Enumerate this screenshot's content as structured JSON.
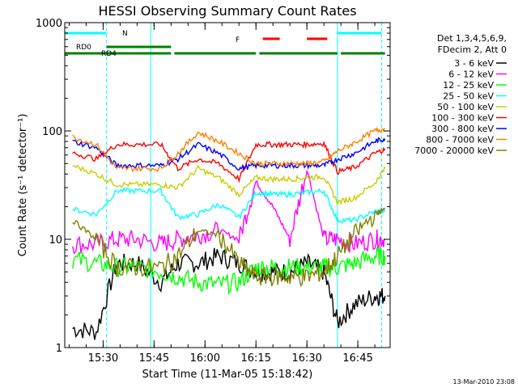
{
  "chart_data": {
    "type": "line",
    "title": "HESSI Observing Summary Count Rates",
    "xlabel": "Start Time (11-Mar-05 15:18:42)",
    "ylabel": "Count Rate (s⁻¹ detector⁻¹)",
    "yscale": "log",
    "ylim": [
      1,
      1000
    ],
    "xlim": [
      "15:18:42",
      "16:54:30"
    ],
    "x_ticks": [
      "15:30",
      "15:45",
      "16:00",
      "16:15",
      "16:30",
      "16:45"
    ],
    "y_ticks": [
      "1",
      "10",
      "100",
      "1000"
    ],
    "grid": false,
    "legend_position": "right",
    "legend_header": [
      "Det 1,3,4,5,6,9,",
      "FDecim 2, Att 0"
    ],
    "footer_date": "13-Mar-2010 23:08",
    "markers": {
      "night_label": "N",
      "flare_label": "F",
      "rd0_label": "RD0",
      "rd4_label": "RD4"
    },
    "series": [
      {
        "name": "3 - 6 keV",
        "color": "#000000",
        "x": [
          "15:21",
          "15:28",
          "15:34",
          "15:40",
          "15:47",
          "15:52",
          "15:58",
          "16:04",
          "16:10",
          "16:15",
          "16:20",
          "16:25",
          "16:30",
          "16:35",
          "16:39",
          "16:44",
          "16:50",
          "16:53"
        ],
        "y": [
          1.5,
          1.4,
          6,
          6,
          4,
          6,
          6,
          7,
          6,
          5,
          5,
          5,
          6,
          5,
          1.7,
          2.5,
          3,
          3
        ]
      },
      {
        "name": "6 - 12 keV",
        "color": "#ff00ff",
        "x": [
          "15:21",
          "15:28",
          "15:34",
          "15:40",
          "15:47",
          "15:52",
          "15:58",
          "16:04",
          "16:10",
          "16:15",
          "16:20",
          "16:25",
          "16:30",
          "16:35",
          "16:39",
          "16:44",
          "16:50",
          "16:53"
        ],
        "y": [
          9,
          9,
          10,
          10,
          9,
          10,
          11,
          12,
          10,
          34,
          20,
          10,
          45,
          10,
          10,
          9,
          10,
          10
        ]
      },
      {
        "name": "12 - 25 keV",
        "color": "#00ff00",
        "x": [
          "15:21",
          "15:28",
          "15:34",
          "15:40",
          "15:47",
          "15:52",
          "15:58",
          "16:04",
          "16:10",
          "16:15",
          "16:20",
          "16:25",
          "16:30",
          "16:35",
          "16:39",
          "16:44",
          "16:50",
          "16:53"
        ],
        "y": [
          6.5,
          6,
          5.5,
          5.5,
          5,
          4.5,
          4,
          3.8,
          4,
          5.5,
          5.5,
          5.5,
          5.5,
          5.5,
          5.5,
          6,
          7,
          7
        ]
      },
      {
        "name": "25 - 50 keV",
        "color": "#00ffff",
        "x": [
          "15:21",
          "15:28",
          "15:34",
          "15:40",
          "15:47",
          "15:52",
          "15:58",
          "16:04",
          "16:10",
          "16:15",
          "16:20",
          "16:25",
          "16:30",
          "16:35",
          "16:39",
          "16:44",
          "16:50",
          "16:53"
        ],
        "y": [
          19,
          17,
          28,
          28,
          28,
          16,
          17,
          21,
          16,
          27,
          26,
          26,
          27,
          28,
          15,
          15,
          18,
          18
        ]
      },
      {
        "name": "50 - 100 keV",
        "color": "#cccc00",
        "x": [
          "15:21",
          "15:28",
          "15:34",
          "15:40",
          "15:47",
          "15:52",
          "15:58",
          "16:04",
          "16:10",
          "16:15",
          "16:20",
          "16:25",
          "16:30",
          "16:35",
          "16:39",
          "16:44",
          "16:50",
          "16:53"
        ],
        "y": [
          48,
          40,
          32,
          32,
          32,
          30,
          45,
          37,
          26,
          37,
          36,
          36,
          37,
          38,
          22,
          24,
          33,
          45
        ]
      },
      {
        "name": "100 - 300 keV",
        "color": "#ff0000",
        "x": [
          "15:21",
          "15:28",
          "15:34",
          "15:40",
          "15:47",
          "15:52",
          "15:58",
          "16:04",
          "16:10",
          "16:15",
          "16:20",
          "16:25",
          "16:30",
          "16:35",
          "16:39",
          "16:44",
          "16:50",
          "16:53"
        ],
        "y": [
          63,
          55,
          75,
          75,
          75,
          45,
          55,
          50,
          36,
          75,
          75,
          75,
          75,
          77,
          42,
          46,
          62,
          68
        ]
      },
      {
        "name": "300 - 800 keV",
        "color": "#0000ff",
        "x": [
          "15:21",
          "15:28",
          "15:34",
          "15:40",
          "15:47",
          "15:52",
          "15:58",
          "16:04",
          "16:10",
          "16:15",
          "16:20",
          "16:25",
          "16:30",
          "16:35",
          "16:39",
          "16:44",
          "16:50",
          "16:53"
        ],
        "y": [
          80,
          70,
          48,
          48,
          48,
          55,
          75,
          62,
          45,
          48,
          48,
          48,
          48,
          48,
          55,
          62,
          80,
          85
        ]
      },
      {
        "name": "800 - 7000 keV",
        "color": "#ff8000",
        "x": [
          "15:21",
          "15:28",
          "15:34",
          "15:40",
          "15:47",
          "15:52",
          "15:58",
          "16:04",
          "16:10",
          "16:15",
          "16:20",
          "16:25",
          "16:30",
          "16:35",
          "16:39",
          "16:44",
          "16:50",
          "16:53"
        ],
        "y": [
          88,
          75,
          45,
          45,
          45,
          62,
          97,
          80,
          62,
          50,
          50,
          50,
          50,
          52,
          65,
          78,
          100,
          105
        ]
      },
      {
        "name": "7000 - 20000 keV",
        "color": "#808000",
        "x": [
          "15:21",
          "15:28",
          "15:34",
          "15:40",
          "15:47",
          "15:52",
          "15:58",
          "16:04",
          "16:10",
          "16:15",
          "16:20",
          "16:25",
          "16:30",
          "16:35",
          "16:39",
          "16:44",
          "16:50",
          "16:53"
        ],
        "y": [
          15,
          10,
          5.5,
          5.5,
          5.5,
          7,
          12,
          11,
          6,
          4.5,
          4.5,
          4.5,
          4.5,
          5,
          7,
          11,
          17,
          19
        ]
      }
    ]
  }
}
